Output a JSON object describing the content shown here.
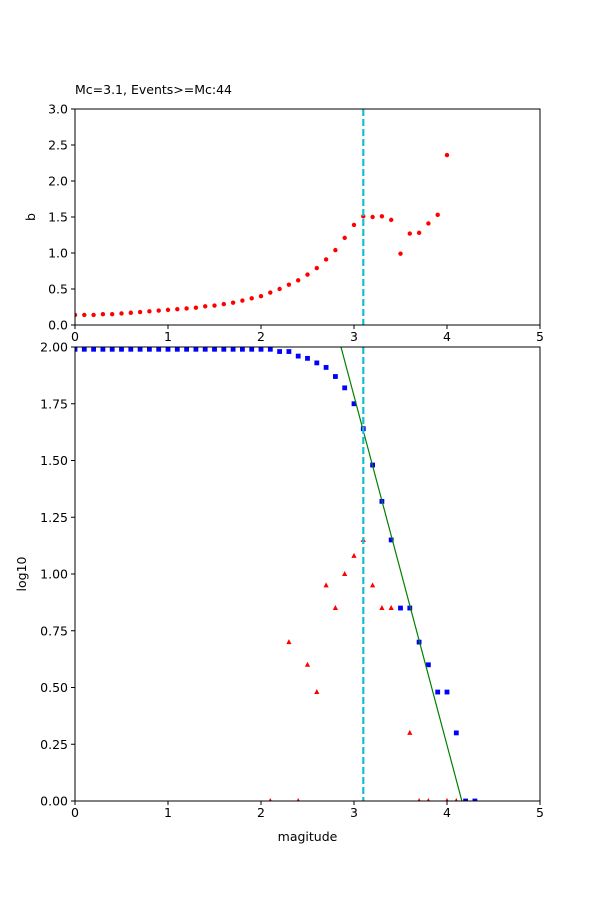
{
  "colors": {
    "b_points": "#ff0000",
    "cumulative": "#0000ff",
    "noncumulative": "#ff0000",
    "fit_line": "#008000",
    "mc_line": "#17becf"
  },
  "chart_data": [
    {
      "type": "scatter",
      "title": "Mc=3.1, Events>=Mc:44",
      "xlabel": "",
      "ylabel": "b",
      "xlim": [
        0,
        5
      ],
      "ylim": [
        0,
        3
      ],
      "xticks": [
        "0",
        "1",
        "2",
        "3",
        "4",
        "5"
      ],
      "yticks": [
        "0.0",
        "0.5",
        "1.0",
        "1.5",
        "2.0",
        "2.5",
        "3.0"
      ],
      "grid": false,
      "mc": 3.1,
      "series": [
        {
          "marker": "circle",
          "x": [
            0.0,
            0.1,
            0.2,
            0.3,
            0.4,
            0.5,
            0.6,
            0.7,
            0.8,
            0.9,
            1.0,
            1.1,
            1.2,
            1.3,
            1.4,
            1.5,
            1.6,
            1.7,
            1.8,
            1.9,
            2.0,
            2.1,
            2.2,
            2.3,
            2.4,
            2.5,
            2.6,
            2.7,
            2.8,
            2.9,
            3.0,
            3.1,
            3.2,
            3.3,
            3.4,
            3.5,
            3.6,
            3.7,
            3.8,
            3.9,
            4.0
          ],
          "y": [
            0.14,
            0.14,
            0.14,
            0.15,
            0.15,
            0.16,
            0.17,
            0.18,
            0.19,
            0.2,
            0.21,
            0.22,
            0.23,
            0.24,
            0.26,
            0.27,
            0.29,
            0.31,
            0.34,
            0.37,
            0.4,
            0.45,
            0.5,
            0.56,
            0.62,
            0.7,
            0.79,
            0.91,
            1.04,
            1.21,
            1.39,
            1.51,
            1.5,
            1.51,
            1.46,
            0.99,
            1.27,
            1.28,
            1.41,
            1.53,
            2.36
          ]
        }
      ]
    },
    {
      "type": "scatter",
      "title": "",
      "xlabel": "magitude",
      "ylabel": "log10",
      "xlim": [
        0,
        5
      ],
      "ylim": [
        0,
        2
      ],
      "xticks": [
        "0",
        "1",
        "2",
        "3",
        "4",
        "5"
      ],
      "yticks": [
        "0.00",
        "0.25",
        "0.50",
        "0.75",
        "1.00",
        "1.25",
        "1.50",
        "1.75",
        "2.00"
      ],
      "grid": false,
      "mc": 3.1,
      "series": [
        {
          "marker": "square",
          "x": [
            0.0,
            0.1,
            0.2,
            0.3,
            0.4,
            0.5,
            0.6,
            0.7,
            0.8,
            0.9,
            1.0,
            1.1,
            1.2,
            1.3,
            1.4,
            1.5,
            1.6,
            1.7,
            1.8,
            1.9,
            2.0,
            2.1,
            2.2,
            2.3,
            2.4,
            2.5,
            2.6,
            2.7,
            2.8,
            2.9,
            3.0,
            3.1,
            3.2,
            3.3,
            3.4,
            3.5,
            3.6,
            3.7,
            3.8,
            3.9,
            4.0,
            4.1,
            4.2,
            4.3
          ],
          "y": [
            1.99,
            1.99,
            1.99,
            1.99,
            1.99,
            1.99,
            1.99,
            1.99,
            1.99,
            1.99,
            1.99,
            1.99,
            1.99,
            1.99,
            1.99,
            1.99,
            1.99,
            1.99,
            1.99,
            1.99,
            1.99,
            1.99,
            1.98,
            1.98,
            1.96,
            1.95,
            1.93,
            1.91,
            1.87,
            1.82,
            1.75,
            1.64,
            1.48,
            1.32,
            1.15,
            0.85,
            0.85,
            0.7,
            0.6,
            0.48,
            0.48,
            0.3,
            0.0,
            0.0
          ]
        },
        {
          "marker": "triangle",
          "x": [
            2.1,
            2.3,
            2.4,
            2.5,
            2.6,
            2.7,
            2.8,
            2.9,
            3.0,
            3.1,
            3.2,
            3.3,
            3.4,
            3.6,
            3.7,
            3.8,
            4.0,
            4.1
          ],
          "y": [
            0.0,
            0.7,
            0.0,
            0.6,
            0.48,
            0.95,
            0.85,
            1.0,
            1.08,
            1.15,
            0.95,
            0.85,
            0.85,
            0.3,
            0.0,
            0.0,
            0.0,
            0.0
          ]
        },
        {
          "type": "line",
          "x": [
            2.86,
            4.16
          ],
          "y": [
            2.0,
            0.0
          ]
        }
      ]
    }
  ]
}
